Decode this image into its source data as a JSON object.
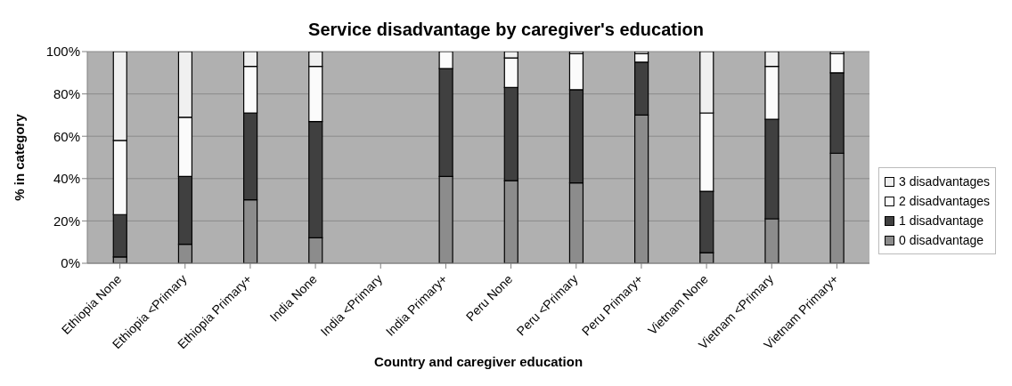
{
  "chart_data": {
    "type": "bar",
    "title": "Service disadvantage by caregiver's education",
    "xlabel": "Country and caregiver education",
    "ylabel": "% in category",
    "categories": [
      "Ethiopia None",
      "Ethiopia <Primary",
      "Ethiopia Primary+",
      "India None",
      "India <Primary",
      "India Primary+",
      "Peru None",
      "Peru <Primary",
      "Peru Primary+",
      "Vietnam None",
      "Vietnam <Primary",
      "Vietnam Primary+"
    ],
    "stacked": true,
    "series": [
      {
        "name": "0 disadvantage",
        "color": "#8c8c8c",
        "values": [
          3,
          9,
          30,
          12,
          null,
          41,
          39,
          38,
          70,
          5,
          21,
          52
        ]
      },
      {
        "name": "1 disadvantage",
        "color": "#404040",
        "values": [
          20,
          32,
          41,
          55,
          null,
          51,
          44,
          44,
          25,
          29,
          47,
          38
        ]
      },
      {
        "name": "2 disadvantages",
        "color": "#fbfbfb",
        "values": [
          35,
          28,
          22,
          26,
          null,
          8,
          14,
          17,
          4,
          37,
          25,
          9
        ]
      },
      {
        "name": "3 disadvantages",
        "color": "#f0f0f0",
        "values": [
          42,
          31,
          7,
          7,
          null,
          0,
          3,
          1,
          1,
          29,
          7,
          1
        ]
      }
    ],
    "ylim": [
      0,
      100
    ],
    "yticks": [
      {
        "value": 0,
        "label": "0%"
      },
      {
        "value": 20,
        "label": "20%"
      },
      {
        "value": 40,
        "label": "40%"
      },
      {
        "value": 60,
        "label": "60%"
      },
      {
        "value": 80,
        "label": "80%"
      },
      {
        "value": 100,
        "label": "100%"
      }
    ],
    "grid": "y",
    "legend": "right"
  }
}
